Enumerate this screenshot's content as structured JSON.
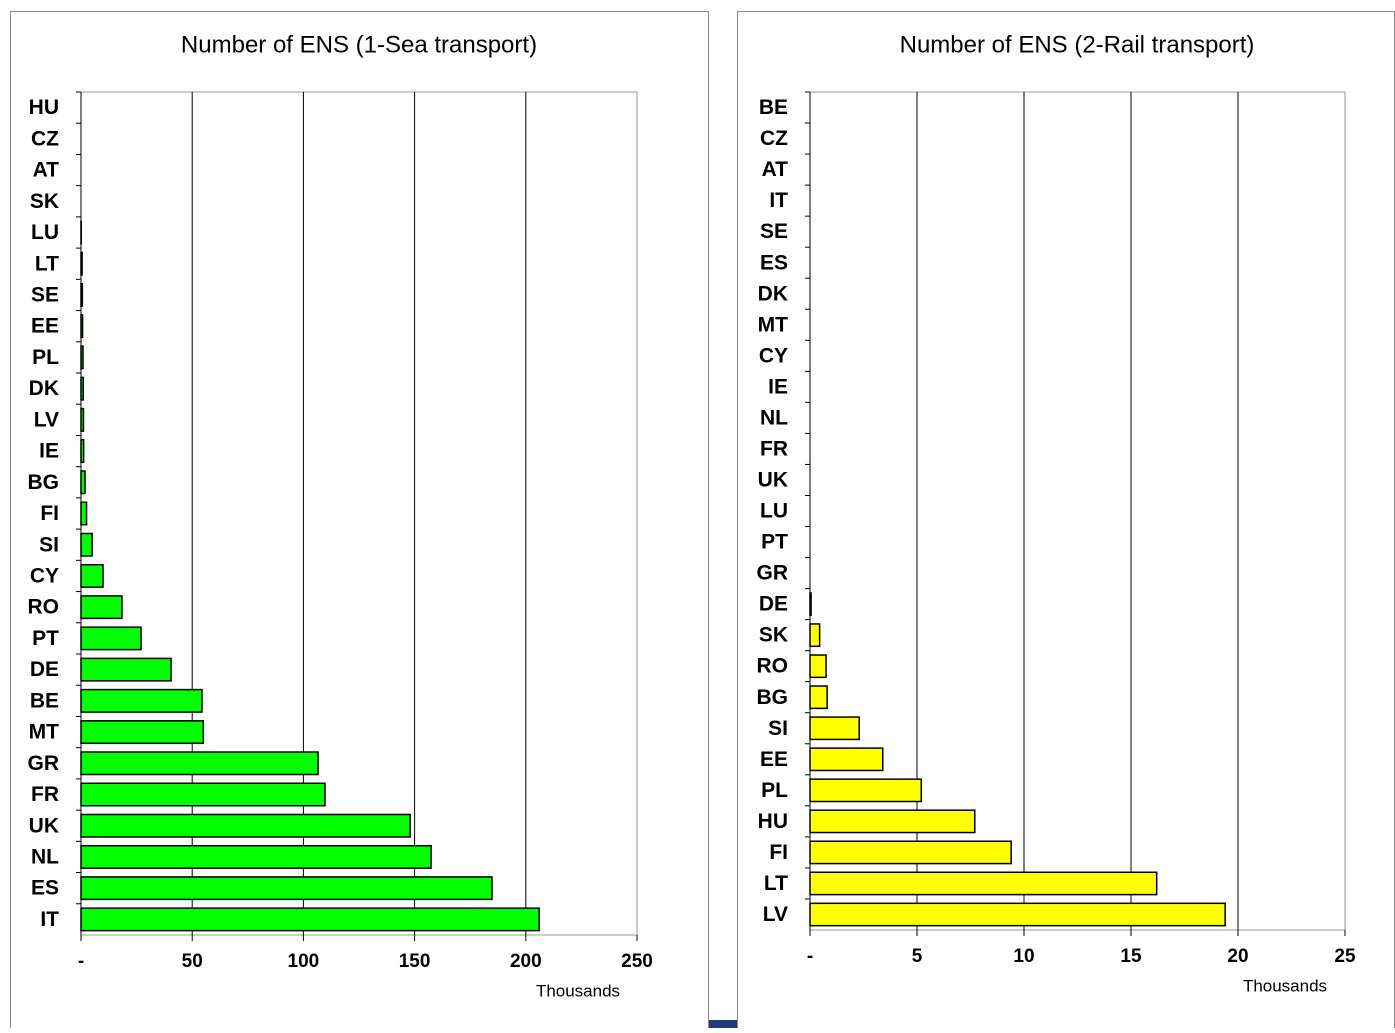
{
  "chart_data": [
    {
      "type": "bar",
      "orientation": "horizontal",
      "title": "Number of ENS (1-Sea transport)",
      "x_label": "Thousands",
      "color": "#00ff00",
      "grid": true,
      "categories": [
        "HU",
        "CZ",
        "AT",
        "SK",
        "LU",
        "LT",
        "SE",
        "EE",
        "PL",
        "DK",
        "LV",
        "IE",
        "BG",
        "FI",
        "SI",
        "CY",
        "RO",
        "PT",
        "DE",
        "BE",
        "MT",
        "GR",
        "FR",
        "UK",
        "NL",
        "ES",
        "IT"
      ],
      "values": [
        0,
        0,
        0,
        0,
        0.1,
        0.5,
        0.6,
        0.7,
        0.9,
        1.0,
        1.1,
        1.2,
        1.8,
        2.5,
        5,
        9.9,
        18.4,
        27,
        40.5,
        54.4,
        55,
        106.6,
        109.7,
        148,
        157.4,
        184.8,
        206
      ],
      "xlim": [
        0,
        250
      ],
      "xticks": [
        {
          "value": 0,
          "label": "-"
        },
        50,
        100,
        150,
        200,
        250
      ]
    },
    {
      "type": "bar",
      "orientation": "horizontal",
      "title": "Number of ENS (2-Rail transport)",
      "x_label": "Thousands",
      "color": "#ffff00",
      "grid": true,
      "categories": [
        "BE",
        "CZ",
        "AT",
        "IT",
        "SE",
        "ES",
        "DK",
        "MT",
        "CY",
        "IE",
        "NL",
        "FR",
        "UK",
        "LU",
        "PT",
        "GR",
        "DE",
        "SK",
        "RO",
        "BG",
        "SI",
        "EE",
        "PL",
        "HU",
        "FI",
        "LT",
        "LV"
      ],
      "values": [
        0,
        0,
        0,
        0,
        0,
        0,
        0,
        0,
        0,
        0,
        0,
        0,
        0,
        0,
        0,
        0,
        0.05,
        0.45,
        0.75,
        0.8,
        2.3,
        3.4,
        5.2,
        7.7,
        9.4,
        16.2,
        19.4
      ],
      "xlim": [
        0,
        25
      ],
      "xticks": [
        {
          "value": 0,
          "label": "-"
        },
        5,
        10,
        15,
        20,
        25
      ]
    }
  ]
}
